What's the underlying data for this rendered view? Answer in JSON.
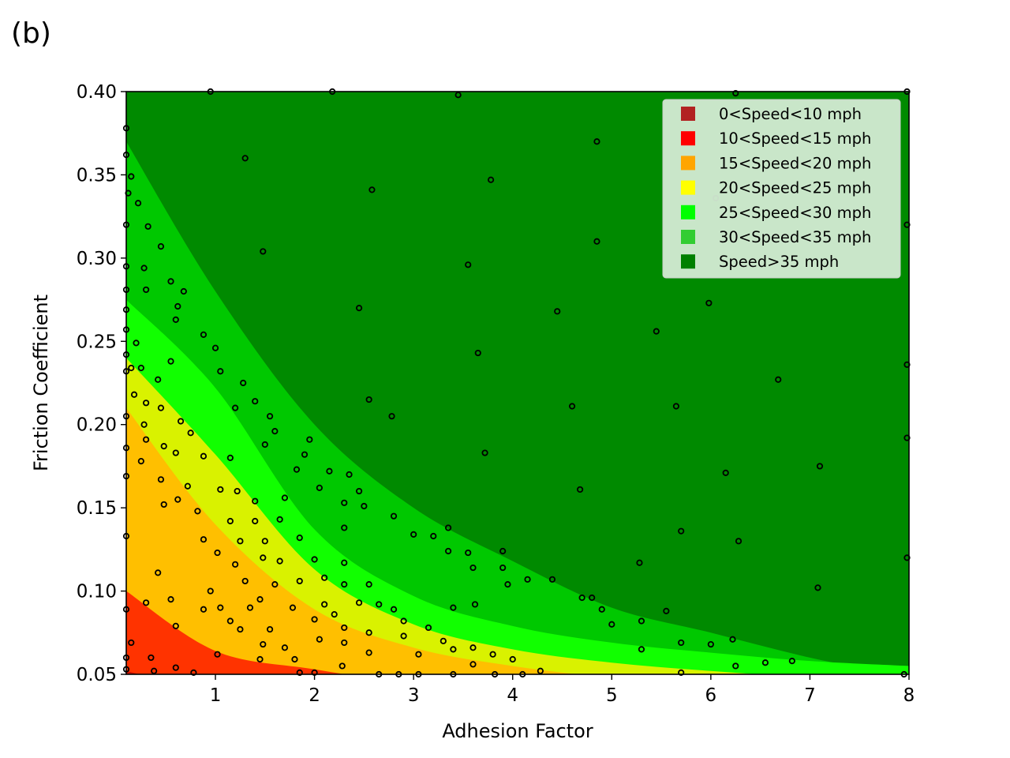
{
  "panel_label": "(b)",
  "chart_data": {
    "type": "scatter",
    "title": "",
    "xlabel": "Adhesion Factor",
    "ylabel": "Friction Coefficient",
    "xlim": [
      0.1,
      8
    ],
    "ylim": [
      0.05,
      0.4
    ],
    "xticks": [
      1,
      2,
      3,
      4,
      5,
      6,
      7,
      8
    ],
    "yticks": [
      0.05,
      0.1,
      0.15,
      0.2,
      0.25,
      0.3,
      0.35,
      0.4
    ],
    "xtick_labels": [
      "1",
      "2",
      "3",
      "4",
      "5",
      "6",
      "7",
      "8"
    ],
    "ytick_labels": [
      "0.05",
      "0.10",
      "0.15",
      "0.20",
      "0.25",
      "0.30",
      "0.35",
      "0.40"
    ],
    "legend_position": "top-right",
    "legend": [
      {
        "label": "0<Speed<10 mph",
        "color": "#b22222"
      },
      {
        "label": "10<Speed<15 mph",
        "color": "#ff0000"
      },
      {
        "label": "15<Speed<20 mph",
        "color": "#ffa500"
      },
      {
        "label": "20<Speed<25 mph",
        "color": "#ffff00"
      },
      {
        "label": "25<Speed<30 mph",
        "color": "#00ff00"
      },
      {
        "label": "30<Speed<35 mph",
        "color": "#32cd32"
      },
      {
        "label": "Speed>35 mph",
        "color": "#008000"
      }
    ],
    "region_colors": [
      "#cc1100",
      "#ff3300",
      "#ffbf00",
      "#d9f200",
      "#11ff00",
      "#00c800",
      "#008a00"
    ],
    "region_boundaries": [
      [
        0.052,
        0.039,
        0.028,
        0.02,
        0.016,
        0.013,
        0.011,
        0.01,
        0.009
      ],
      [
        0.1,
        0.064,
        0.053,
        0.044,
        0.038,
        0.034,
        0.031,
        0.029,
        0.027
      ],
      [
        0.21,
        0.14,
        0.089,
        0.066,
        0.055,
        0.048,
        0.044,
        0.04,
        0.038
      ],
      [
        0.24,
        0.182,
        0.113,
        0.08,
        0.065,
        0.057,
        0.052,
        0.048,
        0.045
      ],
      [
        0.275,
        0.222,
        0.137,
        0.097,
        0.079,
        0.069,
        0.063,
        0.058,
        0.055
      ],
      [
        0.37,
        0.28,
        0.2,
        0.15,
        0.118,
        0.09,
        0.075,
        0.06,
        0.048
      ]
    ],
    "boundary_x": [
      0.1,
      1,
      2,
      3,
      4,
      5,
      6,
      7,
      8
    ],
    "points": [
      [
        0.1,
        0.378
      ],
      [
        0.1,
        0.362
      ],
      [
        0.15,
        0.349
      ],
      [
        0.12,
        0.339
      ],
      [
        0.22,
        0.333
      ],
      [
        0.1,
        0.32
      ],
      [
        0.32,
        0.319
      ],
      [
        0.45,
        0.307
      ],
      [
        0.28,
        0.294
      ],
      [
        0.1,
        0.295
      ],
      [
        0.3,
        0.281
      ],
      [
        0.55,
        0.286
      ],
      [
        0.62,
        0.271
      ],
      [
        0.68,
        0.28
      ],
      [
        0.1,
        0.281
      ],
      [
        0.1,
        0.269
      ],
      [
        0.6,
        0.263
      ],
      [
        0.1,
        0.257
      ],
      [
        0.2,
        0.249
      ],
      [
        0.1,
        0.242
      ],
      [
        0.88,
        0.254
      ],
      [
        1.0,
        0.246
      ],
      [
        0.15,
        0.234
      ],
      [
        0.25,
        0.234
      ],
      [
        0.42,
        0.227
      ],
      [
        0.1,
        0.232
      ],
      [
        1.05,
        0.232
      ],
      [
        0.55,
        0.238
      ],
      [
        0.18,
        0.218
      ],
      [
        0.3,
        0.213
      ],
      [
        0.45,
        0.21
      ],
      [
        0.1,
        0.205
      ],
      [
        0.28,
        0.2
      ],
      [
        0.65,
        0.202
      ],
      [
        1.2,
        0.21
      ],
      [
        1.28,
        0.225
      ],
      [
        1.4,
        0.214
      ],
      [
        1.55,
        0.205
      ],
      [
        0.1,
        0.186
      ],
      [
        0.3,
        0.191
      ],
      [
        0.48,
        0.187
      ],
      [
        0.75,
        0.195
      ],
      [
        0.88,
        0.181
      ],
      [
        0.25,
        0.178
      ],
      [
        0.6,
        0.183
      ],
      [
        1.15,
        0.18
      ],
      [
        1.5,
        0.188
      ],
      [
        1.6,
        0.196
      ],
      [
        1.9,
        0.182
      ],
      [
        1.95,
        0.191
      ],
      [
        0.1,
        0.169
      ],
      [
        0.45,
        0.167
      ],
      [
        0.72,
        0.163
      ],
      [
        1.05,
        0.161
      ],
      [
        1.22,
        0.16
      ],
      [
        1.4,
        0.154
      ],
      [
        1.7,
        0.156
      ],
      [
        1.82,
        0.173
      ],
      [
        2.05,
        0.162
      ],
      [
        2.15,
        0.172
      ],
      [
        2.35,
        0.17
      ],
      [
        2.45,
        0.16
      ],
      [
        0.48,
        0.152
      ],
      [
        0.62,
        0.155
      ],
      [
        0.82,
        0.148
      ],
      [
        1.15,
        0.142
      ],
      [
        1.25,
        0.13
      ],
      [
        1.4,
        0.142
      ],
      [
        1.5,
        0.13
      ],
      [
        1.65,
        0.143
      ],
      [
        0.1,
        0.133
      ],
      [
        0.88,
        0.131
      ],
      [
        1.02,
        0.123
      ],
      [
        1.2,
        0.116
      ],
      [
        1.48,
        0.12
      ],
      [
        1.65,
        0.118
      ],
      [
        1.85,
        0.132
      ],
      [
        2.3,
        0.138
      ],
      [
        2.3,
        0.153
      ],
      [
        2.5,
        0.151
      ],
      [
        2.8,
        0.145
      ],
      [
        0.42,
        0.111
      ],
      [
        1.3,
        0.106
      ],
      [
        1.6,
        0.104
      ],
      [
        1.85,
        0.106
      ],
      [
        2.0,
        0.119
      ],
      [
        2.1,
        0.108
      ],
      [
        2.3,
        0.117
      ],
      [
        2.55,
        0.104
      ],
      [
        3.0,
        0.134
      ],
      [
        3.2,
        0.133
      ],
      [
        3.35,
        0.124
      ],
      [
        3.35,
        0.138
      ],
      [
        3.55,
        0.123
      ],
      [
        3.6,
        0.114
      ],
      [
        3.9,
        0.114
      ],
      [
        3.9,
        0.124
      ],
      [
        0.1,
        0.089
      ],
      [
        0.3,
        0.093
      ],
      [
        0.55,
        0.095
      ],
      [
        0.95,
        0.1
      ],
      [
        0.88,
        0.089
      ],
      [
        1.05,
        0.09
      ],
      [
        1.15,
        0.082
      ],
      [
        1.35,
        0.09
      ],
      [
        1.45,
        0.095
      ],
      [
        1.78,
        0.09
      ],
      [
        2.0,
        0.083
      ],
      [
        2.1,
        0.092
      ],
      [
        2.2,
        0.086
      ],
      [
        2.3,
        0.104
      ],
      [
        2.45,
        0.093
      ],
      [
        2.65,
        0.092
      ],
      [
        2.8,
        0.089
      ],
      [
        2.9,
        0.082
      ],
      [
        3.4,
        0.09
      ],
      [
        3.62,
        0.092
      ],
      [
        3.95,
        0.104
      ],
      [
        4.15,
        0.107
      ],
      [
        4.4,
        0.107
      ],
      [
        4.7,
        0.096
      ],
      [
        4.8,
        0.096
      ],
      [
        4.9,
        0.089
      ],
      [
        5.0,
        0.08
      ],
      [
        5.3,
        0.082
      ],
      [
        0.6,
        0.079
      ],
      [
        1.25,
        0.077
      ],
      [
        1.55,
        0.077
      ],
      [
        0.15,
        0.069
      ],
      [
        1.02,
        0.062
      ],
      [
        1.48,
        0.068
      ],
      [
        1.7,
        0.066
      ],
      [
        2.05,
        0.071
      ],
      [
        2.3,
        0.069
      ],
      [
        2.3,
        0.078
      ],
      [
        2.55,
        0.075
      ],
      [
        2.9,
        0.073
      ],
      [
        3.15,
        0.078
      ],
      [
        3.3,
        0.07
      ],
      [
        3.4,
        0.065
      ],
      [
        3.6,
        0.066
      ],
      [
        5.55,
        0.088
      ],
      [
        5.3,
        0.065
      ],
      [
        5.7,
        0.069
      ],
      [
        6.0,
        0.068
      ],
      [
        6.22,
        0.071
      ],
      [
        0.1,
        0.06
      ],
      [
        0.35,
        0.06
      ],
      [
        0.6,
        0.054
      ],
      [
        0.1,
        0.053
      ],
      [
        0.38,
        0.052
      ],
      [
        0.78,
        0.051
      ],
      [
        1.45,
        0.059
      ],
      [
        1.8,
        0.059
      ],
      [
        1.85,
        0.051
      ],
      [
        2.0,
        0.051
      ],
      [
        2.28,
        0.055
      ],
      [
        2.55,
        0.063
      ],
      [
        2.65,
        0.05
      ],
      [
        2.85,
        0.05
      ],
      [
        3.05,
        0.062
      ],
      [
        3.05,
        0.05
      ],
      [
        3.4,
        0.05
      ],
      [
        3.6,
        0.056
      ],
      [
        3.8,
        0.062
      ],
      [
        3.82,
        0.05
      ],
      [
        4.0,
        0.059
      ],
      [
        4.1,
        0.05
      ],
      [
        4.28,
        0.052
      ],
      [
        5.7,
        0.051
      ],
      [
        6.25,
        0.055
      ],
      [
        6.55,
        0.057
      ],
      [
        6.82,
        0.058
      ],
      [
        7.95,
        0.05
      ],
      [
        0.95,
        0.4
      ],
      [
        2.18,
        0.4
      ],
      [
        3.45,
        0.398
      ],
      [
        6.25,
        0.399
      ],
      [
        7.98,
        0.4
      ],
      [
        1.3,
        0.36
      ],
      [
        2.58,
        0.341
      ],
      [
        3.78,
        0.347
      ],
      [
        4.85,
        0.37
      ],
      [
        6.05,
        0.336
      ],
      [
        7.98,
        0.32
      ],
      [
        1.48,
        0.304
      ],
      [
        3.55,
        0.296
      ],
      [
        4.85,
        0.31
      ],
      [
        2.45,
        0.27
      ],
      [
        4.45,
        0.268
      ],
      [
        5.98,
        0.273
      ],
      [
        5.45,
        0.256
      ],
      [
        3.65,
        0.243
      ],
      [
        6.68,
        0.227
      ],
      [
        7.98,
        0.236
      ],
      [
        2.55,
        0.215
      ],
      [
        2.78,
        0.205
      ],
      [
        4.6,
        0.211
      ],
      [
        5.65,
        0.211
      ],
      [
        7.98,
        0.192
      ],
      [
        3.72,
        0.183
      ],
      [
        7.1,
        0.175
      ],
      [
        4.68,
        0.161
      ],
      [
        6.15,
        0.171
      ],
      [
        5.7,
        0.136
      ],
      [
        6.28,
        0.13
      ],
      [
        5.28,
        0.117
      ],
      [
        7.98,
        0.12
      ],
      [
        7.08,
        0.102
      ]
    ]
  }
}
